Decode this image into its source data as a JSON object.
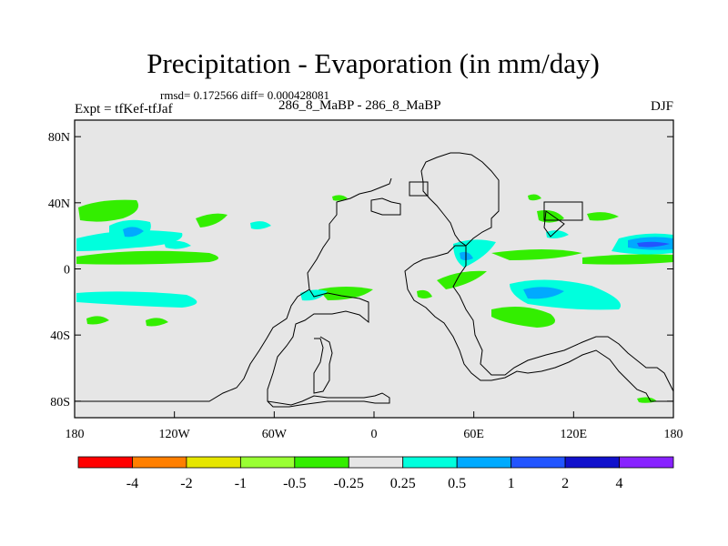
{
  "title": "Precipitation - Evaporation (in mm/day)",
  "stats": "rmsd= 0.172566 diff= 0.000428081",
  "experiment": "Expt = tfKef-tfJaf",
  "runs": "286_8_MaBP - 286_8_MaBP",
  "season": "DJF",
  "map": {
    "background": "#e6e6e6",
    "outline_color": "#000000",
    "lat_labels": [
      {
        "value": 80,
        "label": "80N"
      },
      {
        "value": 40,
        "label": "40N"
      },
      {
        "value": 0,
        "label": "0"
      },
      {
        "value": -40,
        "label": "40S"
      },
      {
        "value": -80,
        "label": "80S"
      }
    ],
    "lon_labels": [
      {
        "value": -180,
        "label": "180"
      },
      {
        "value": -120,
        "label": "120W"
      },
      {
        "value": -60,
        "label": "60W"
      },
      {
        "value": 0,
        "label": "0"
      },
      {
        "value": 60,
        "label": "60E"
      },
      {
        "value": 120,
        "label": "120E"
      },
      {
        "value": 180,
        "label": "180"
      }
    ],
    "lon_range": [
      -180,
      180
    ],
    "lat_range": [
      -90,
      90
    ]
  },
  "colorbar": {
    "colors": [
      "#ff0000",
      "#ff7f00",
      "#e6e600",
      "#99ff33",
      "#33ee00",
      "#e6e6e6",
      "#00ffdd",
      "#00aaff",
      "#2255ff",
      "#1111cc",
      "#8822ff"
    ],
    "labels": [
      "-4",
      "-2",
      "-1",
      "-0.5",
      "-0.25",
      "0.25",
      "0.5",
      "1",
      "2",
      "4"
    ]
  }
}
